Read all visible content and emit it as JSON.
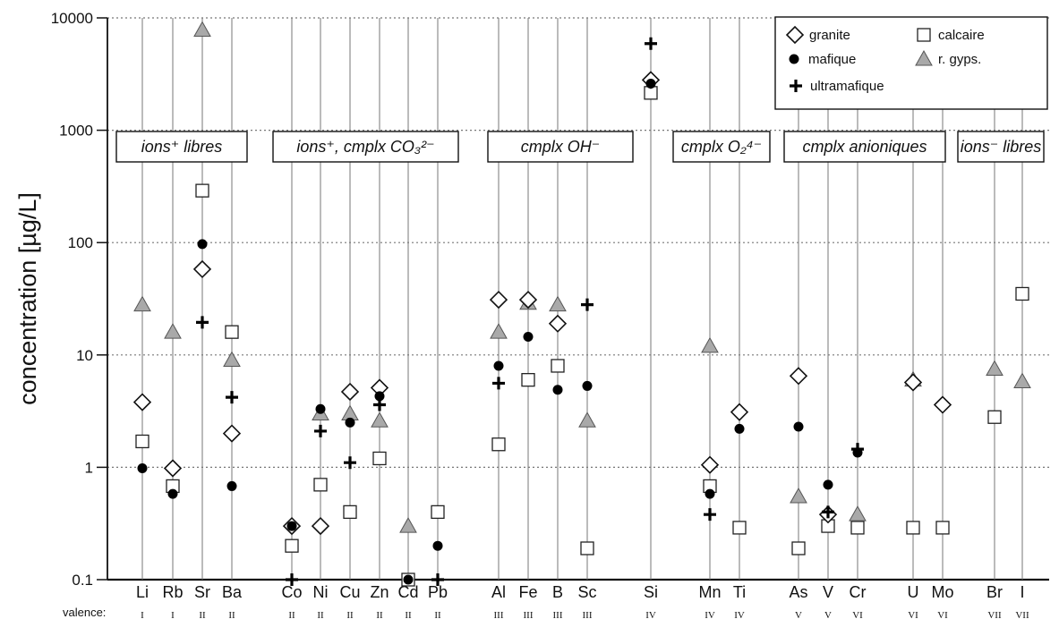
{
  "chart_data": {
    "type": "scatter",
    "title": "",
    "ylabel": "concentration  [µg/L]",
    "yscale": "log",
    "ylim": [
      0.1,
      10000
    ],
    "yticks": [
      "0.1",
      "1",
      "10",
      "100",
      "1000",
      "10000"
    ],
    "grid": "dotted horizontal at decades, vertical lines per element",
    "legend_position": "top-right",
    "valence_label": "valence:",
    "categories": [
      "Li",
      "Rb",
      "Sr",
      "Ba",
      "Co",
      "Ni",
      "Cu",
      "Zn",
      "Cd",
      "Pb",
      "Al",
      "Fe",
      "B",
      "Sc",
      "Si",
      "Mn",
      "Ti",
      "As",
      "V",
      "Cr",
      "U",
      "Mo",
      "Br",
      "I"
    ],
    "valences": [
      "I",
      "I",
      "II",
      "II",
      "II",
      "II",
      "II",
      "II",
      "II",
      "II",
      "III",
      "III",
      "III",
      "III",
      "IV",
      "IV",
      "IV",
      "V",
      "V",
      "VI",
      "VI",
      "VI",
      "VII",
      "VII"
    ],
    "groups": [
      {
        "label": "ions⁺ libres"
      },
      {
        "label": "ions⁺, cmplx CO₃²⁻"
      },
      {
        "label": "cmplx OH⁻"
      },
      {
        "label": "cmplx O₂⁴⁻"
      },
      {
        "label": "cmplx anioniques"
      },
      {
        "label": "ions⁻ libres"
      }
    ],
    "series": [
      {
        "name": "granite",
        "marker": "diamond",
        "color": "#ffffff",
        "values": {
          "Li": 3.8,
          "Rb": 0.98,
          "Sr": 58,
          "Ba": 2.0,
          "Co": 0.3,
          "Ni": 0.3,
          "Cu": 4.7,
          "Zn": 5.1,
          "Al": 31,
          "Fe": 31,
          "B": 19,
          "Si": 2800,
          "Mn": 1.05,
          "Ti": 3.1,
          "As": 6.5,
          "V": 0.38,
          "U": 5.7,
          "Mo": 3.6
        }
      },
      {
        "name": "calcaire",
        "marker": "square",
        "color": "#ffffff",
        "values": {
          "Li": 1.7,
          "Rb": 0.68,
          "Sr": 290,
          "Ba": 16,
          "Co": 0.2,
          "Ni": 0.7,
          "Cu": 0.4,
          "Zn": 1.2,
          "Cd": 0.1,
          "Pb": 0.4,
          "Al": 1.6,
          "Fe": 6.0,
          "B": 8.0,
          "Sc": 0.19,
          "Si": 2150,
          "Mn": 0.68,
          "Ti": 0.29,
          "As": 0.19,
          "V": 0.3,
          "Cr": 0.29,
          "U": 0.29,
          "Mo": 0.29,
          "Br": 2.8,
          "I": 35
        }
      },
      {
        "name": "mafique",
        "marker": "circle",
        "color": "#000000",
        "values": {
          "Li": 0.98,
          "Rb": 0.58,
          "Sr": 97,
          "Ba": 0.68,
          "Co": 0.3,
          "Ni": 3.3,
          "Cu": 2.5,
          "Zn": 4.3,
          "Cd": 0.1,
          "Pb": 0.2,
          "Al": 8.0,
          "Fe": 14.5,
          "B": 4.9,
          "Sc": 5.3,
          "Si": 2600,
          "Mn": 0.58,
          "Ti": 2.2,
          "As": 2.3,
          "V": 0.7,
          "Cr": 1.35
        }
      },
      {
        "name": "r. gyps.",
        "marker": "triangle",
        "color": "#a9a9a9",
        "values": {
          "Li": 28,
          "Rb": 16,
          "Sr": 7800,
          "Ba": 9.0,
          "Ni": 3.0,
          "Cu": 3.0,
          "Zn": 2.6,
          "Cd": 0.3,
          "Al": 16,
          "Fe": 29,
          "B": 28,
          "Sc": 2.6,
          "Mn": 12,
          "As": 0.55,
          "Cr": 0.38,
          "U": 6.0,
          "Br": 7.5,
          "I": 5.8
        }
      },
      {
        "name": "ultramafique",
        "marker": "plus",
        "color": "#000000",
        "values": {
          "Sr": 19.5,
          "Ba": 4.2,
          "Co": 0.1,
          "Ni": 2.1,
          "Cu": 1.1,
          "Zn": 3.6,
          "Pb": 0.1,
          "Al": 5.6,
          "Sc": 28,
          "Si": 5900,
          "Mn": 0.38,
          "V": 0.4,
          "Cr": 1.45
        }
      }
    ]
  }
}
